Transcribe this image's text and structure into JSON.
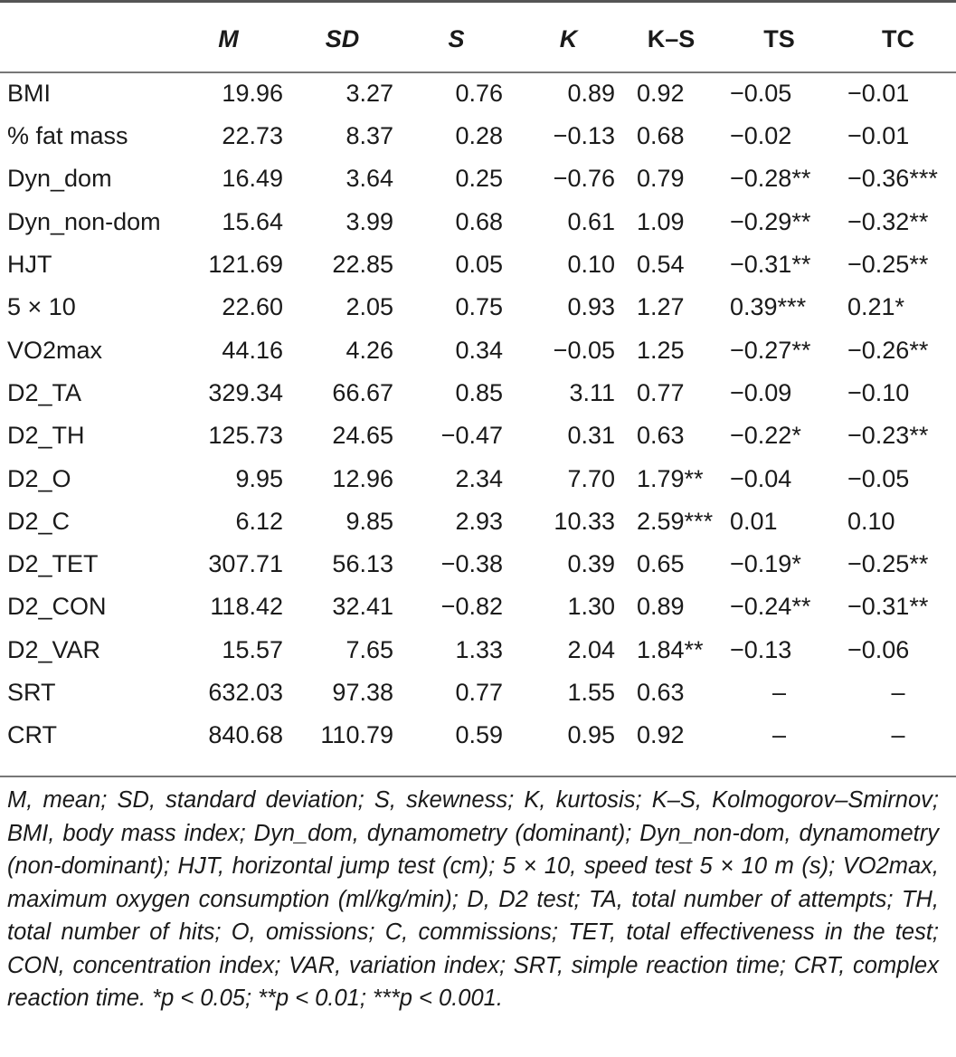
{
  "table": {
    "headers": [
      "",
      "M",
      "SD",
      "S",
      "K",
      "K–S",
      "TS",
      "TC"
    ],
    "rows": [
      [
        "BMI",
        "19.96",
        "3.27",
        "0.76",
        "0.89",
        "0.92",
        "−0.05",
        "−0.01"
      ],
      [
        "% fat mass",
        "22.73",
        "8.37",
        "0.28",
        "−0.13",
        "0.68",
        "−0.02",
        "−0.01"
      ],
      [
        "Dyn_dom",
        "16.49",
        "3.64",
        "0.25",
        "−0.76",
        "0.79",
        "−0.28**",
        "−0.36***"
      ],
      [
        "Dyn_non-dom",
        "15.64",
        "3.99",
        "0.68",
        "0.61",
        "1.09",
        "−0.29**",
        "−0.32**"
      ],
      [
        "HJT",
        "121.69",
        "22.85",
        "0.05",
        "0.10",
        "0.54",
        "−0.31**",
        "−0.25**"
      ],
      [
        "5 × 10",
        "22.60",
        "2.05",
        "0.75",
        "0.93",
        "1.27",
        " 0.39***",
        " 0.21*"
      ],
      [
        "VO2max",
        "44.16",
        "4.26",
        "0.34",
        "−0.05",
        "1.25",
        "−0.27**",
        "−0.26**"
      ],
      [
        "D2_TA",
        "329.34",
        "66.67",
        "0.85",
        "3.11",
        "0.77",
        "−0.09",
        "−0.10"
      ],
      [
        "D2_TH",
        "125.73",
        "24.65",
        "−0.47",
        "0.31",
        "0.63",
        "−0.22*",
        "−0.23**"
      ],
      [
        "D2_O",
        "9.95",
        "12.96",
        "2.34",
        "7.70",
        "1.79**",
        "−0.04",
        "−0.05"
      ],
      [
        "D2_C",
        "6.12",
        "9.85",
        "2.93",
        "10.33",
        "2.59***",
        " 0.01",
        " 0.10"
      ],
      [
        "D2_TET",
        "307.71",
        "56.13",
        "−0.38",
        "0.39",
        "0.65",
        "−0.19*",
        "−0.25**"
      ],
      [
        "D2_CON",
        "118.42",
        "32.41",
        "−0.82",
        "1.30",
        "0.89",
        "−0.24**",
        "−0.31**"
      ],
      [
        "D2_VAR",
        "15.57",
        "7.65",
        "1.33",
        "2.04",
        "1.84**",
        "−0.13",
        "−0.06"
      ],
      [
        "SRT",
        "632.03",
        "97.38",
        "0.77",
        "1.55",
        "0.63",
        "–",
        "–"
      ],
      [
        "CRT",
        "840.68",
        "110.79",
        "0.59",
        "0.95",
        "0.92",
        "–",
        "–"
      ]
    ]
  },
  "note": "M, mean; SD, standard deviation; S, skewness; K, kurtosis; K–S, Kolmogorov–Smirnov; BMI, body mass index; Dyn_dom, dynamometry (dominant); Dyn_non-dom, dynamometry (non-dominant); HJT, horizontal jump test (cm); 5 × 10, speed test 5 × 10 m (s); VO2max, maximum oxygen consumption (ml/kg/min); D, D2 test; TA, total number of attempts; TH, total number of hits; O, omissions; C, commissions; TET, total effectiveness in the test; CON, concentration index; VAR, variation index; SRT, simple reaction time; CRT, complex reaction time. *p < 0.05; **p < 0.01; ***p < 0.001."
}
